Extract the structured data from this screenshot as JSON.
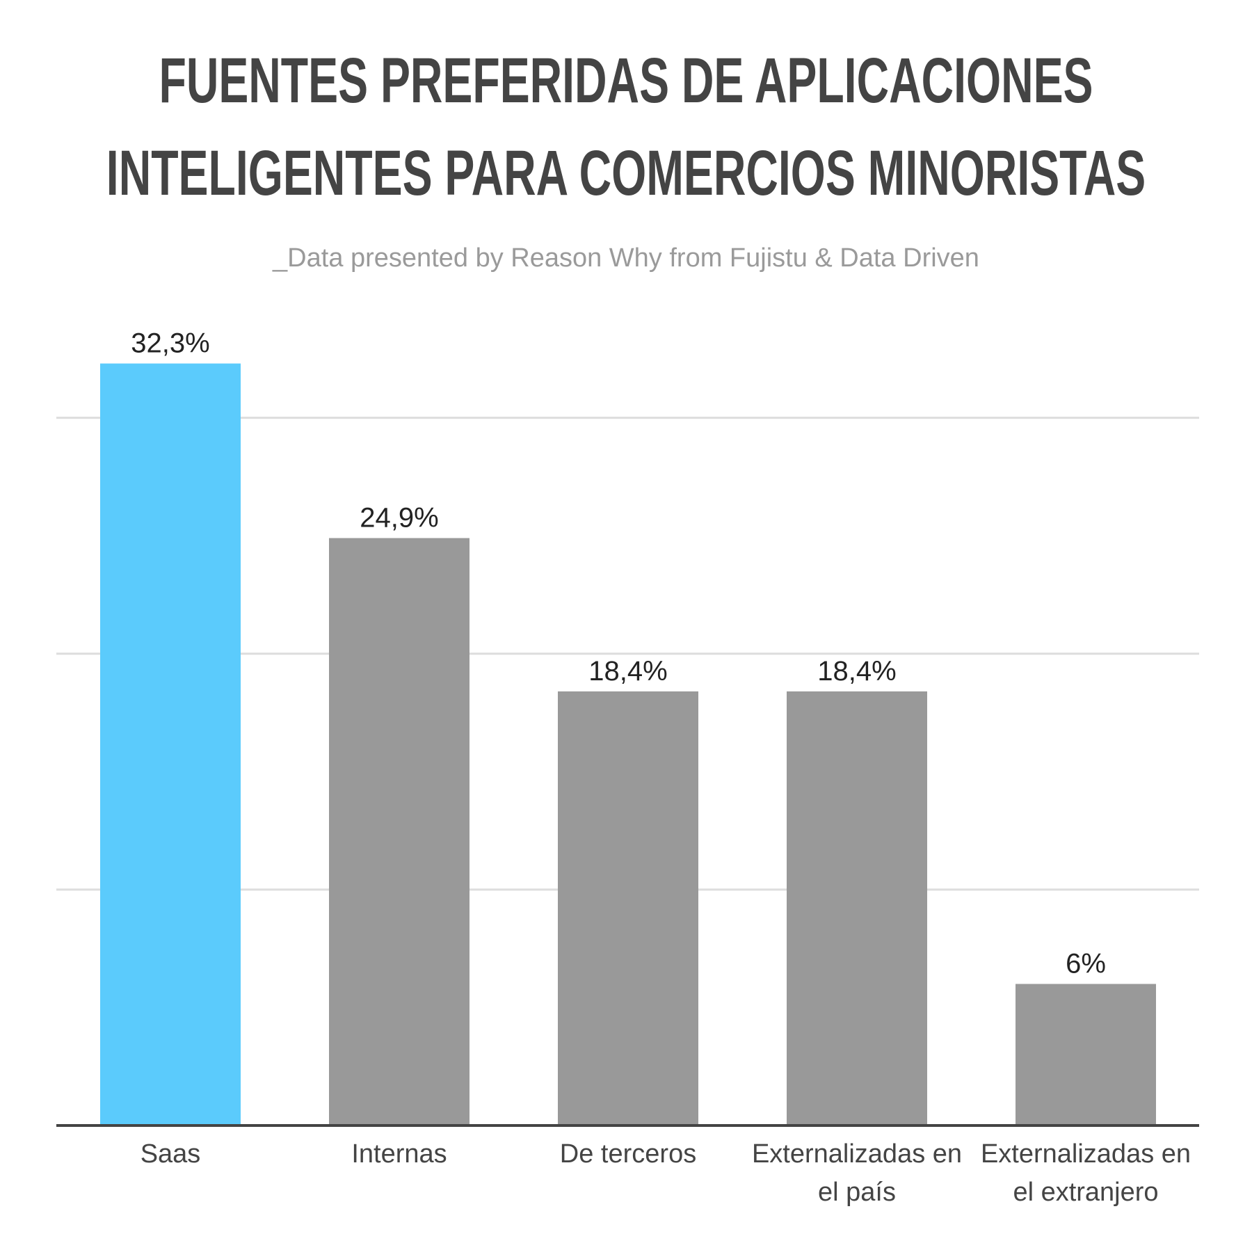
{
  "chart_data": {
    "type": "bar",
    "title": "FUENTES PREFERIDAS DE APLICACIONES INTELIGENTES PARA COMERCIOS MINORISTAS",
    "subtitle": "_Data presented by Reason Why from Fujistu & Data Driven",
    "categories": [
      "Saas",
      "Internas",
      "De terceros",
      "Externalizadas en el país",
      "Externalizadas en el extranjero"
    ],
    "values": [
      32.3,
      24.9,
      18.4,
      18.4,
      6
    ],
    "value_labels": [
      "32,3%",
      "24,9%",
      "18,4%",
      "18,4%",
      "6%"
    ],
    "colors": [
      "#5bcbfc",
      "#999999",
      "#999999",
      "#999999",
      "#999999"
    ],
    "ylim": [
      0,
      35
    ],
    "yticks": [
      10,
      20,
      30
    ],
    "grid": true
  }
}
